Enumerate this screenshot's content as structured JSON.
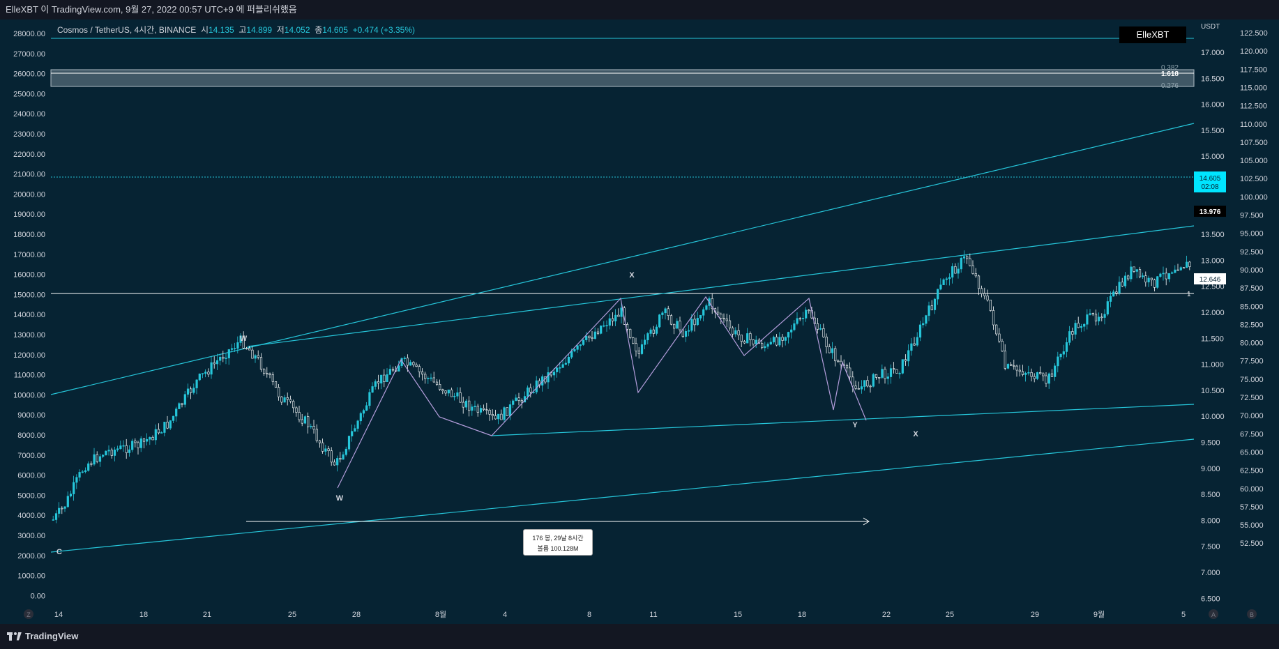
{
  "header": {
    "publish_text": "ElleXBT 이 TradingView.com, 9월 27, 2022 00:57 UTC+9 에 퍼블리쉬했음"
  },
  "symbol": {
    "name": "Cosmos / TetherUS, 4시간, BINANCE",
    "open_label": "시",
    "open": "14.135",
    "high_label": "고",
    "high": "14.899",
    "low_label": "저",
    "low": "14.052",
    "close_label": "종",
    "close": "14.605",
    "change": "+0.474 (+3.35%)"
  },
  "author_badge": "ElleXBT",
  "right_axis": {
    "currency": "USDT",
    "ticks": [
      "17.000",
      "16.500",
      "16.000",
      "15.500",
      "15.000",
      "14.500",
      "14.000",
      "13.500",
      "13.000",
      "12.500",
      "12.000",
      "11.500",
      "11.000",
      "10.500",
      "10.000",
      "9.500",
      "9.000",
      "8.500",
      "8.000",
      "7.500",
      "7.000",
      "6.500"
    ]
  },
  "far_right_axis": {
    "ticks": [
      "122.500",
      "120.000",
      "117.500",
      "115.000",
      "112.500",
      "110.000",
      "107.500",
      "105.000",
      "102.500",
      "100.000",
      "97.500",
      "95.000",
      "92.500",
      "90.000",
      "87.500",
      "85.000",
      "82.500",
      "80.000",
      "77.500",
      "75.000",
      "72.500",
      "70.000",
      "67.500",
      "65.000",
      "62.500",
      "60.000",
      "57.500",
      "55.000",
      "52.500"
    ]
  },
  "left_axis": {
    "ticks": [
      "28000.00",
      "27000.00",
      "26000.00",
      "25000.00",
      "24000.00",
      "23000.00",
      "22000.00",
      "21000.00",
      "20000.00",
      "19000.00",
      "18000.00",
      "17000.00",
      "16000.00",
      "15000.00",
      "14000.00",
      "13000.00",
      "12000.00",
      "11000.00",
      "10000.00",
      "9000.00",
      "8000.00",
      "7000.00",
      "6000.00",
      "5000.00",
      "4000.00",
      "3000.00",
      "2000.00",
      "1000.00",
      "0.00"
    ]
  },
  "x_axis": {
    "ticks": [
      "14",
      "18",
      "21",
      "25",
      "28",
      "8월",
      "4",
      "8",
      "11",
      "15",
      "18",
      "22",
      "25",
      "29",
      "9월",
      "5"
    ],
    "left_button": "Z",
    "right_buttons": [
      "A",
      "B"
    ]
  },
  "price_labels": {
    "current_price": "14.605",
    "countdown": "02:08",
    "level_price": "13.976",
    "ref_price": "12.646",
    "fib_1618": "1.618",
    "fib_0382": "0.382",
    "fib_0276": "0.276",
    "fib_1": "1"
  },
  "wave_labels": [
    "W",
    "W",
    "X",
    "Y",
    "X",
    "C"
  ],
  "measure": {
    "line1": "176 봉, 29날 8시간",
    "line2": "볼륨 100.128M"
  },
  "footer": {
    "brand": "TradingView"
  },
  "colors": {
    "background": "#062333",
    "trend_line": "#26c6da",
    "wave_line": "#b39ddb",
    "candle_up": "#26c6da",
    "candle_down": "#ffffff",
    "current_price_bg": "#00e5ff"
  }
}
